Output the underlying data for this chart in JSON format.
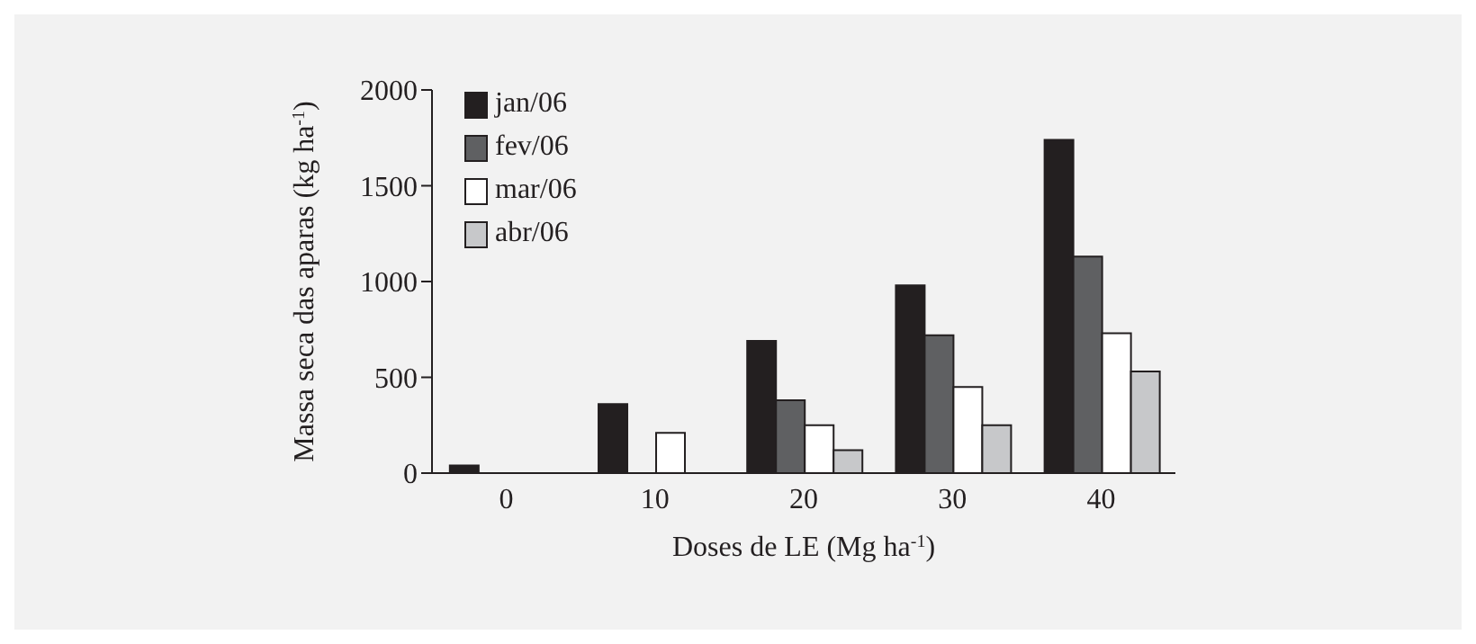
{
  "chart_data": {
    "type": "bar",
    "xlabel": "Doses de LE (Mg ha$^{-1}$)",
    "ylabel": "Massa seca das aparas (kg ha$^{-1}$)",
    "categories": [
      "0",
      "10",
      "20",
      "30",
      "40"
    ],
    "series": [
      {
        "name": "jan/06",
        "color": "#231f20",
        "values": [
          40,
          360,
          690,
          980,
          1740
        ]
      },
      {
        "name": "fev/06",
        "color": "#5f6062",
        "values": [
          0,
          0,
          380,
          720,
          1130
        ]
      },
      {
        "name": "mar/06",
        "color": "#ffffff",
        "values": [
          0,
          210,
          250,
          450,
          730
        ]
      },
      {
        "name": "abr/06",
        "color": "#c7c8ca",
        "values": [
          0,
          0,
          120,
          250,
          530
        ]
      }
    ],
    "ylim": [
      0,
      2000
    ],
    "yticks": [
      0,
      500,
      1000,
      1500,
      2000
    ],
    "grid": false,
    "legend": "top left"
  }
}
